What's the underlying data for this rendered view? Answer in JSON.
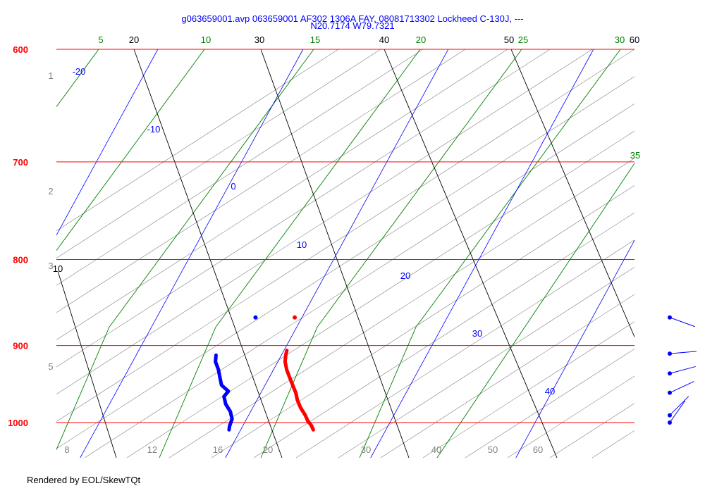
{
  "header": {
    "title_line1": "g063659001.avp 063659001 AF302 1306A FAY, 08081713302 Lockheed C-130J, ---",
    "title_line2": "N20.7174 W79.7321"
  },
  "footer": {
    "text": "Rendered by EOL/SkewTQt"
  },
  "colors": {
    "isobar": "#ff0000",
    "isotherm": "#0000ff",
    "dry_adiabat": "#000000",
    "moist_adiabat": "#008000",
    "mixing_ratio": "#808080",
    "temperature": "#ff0000",
    "dewpoint": "#0000ff",
    "wind": "#0000ff"
  },
  "chart_data": {
    "type": "skew-t",
    "pressure_range_hpa": [
      1000,
      600
    ],
    "isobar_labels": [
      "600",
      "700",
      "800",
      "900",
      "1000"
    ],
    "isotherm_labels": [
      "-20",
      "-10",
      "0",
      "10",
      "20",
      "30",
      "40"
    ],
    "dry_adiabat_labels": [
      "10",
      "20",
      "30",
      "40",
      "50",
      "60"
    ],
    "moist_adiabat_labels": [
      "5",
      "10",
      "15",
      "20",
      "25",
      "30",
      "35"
    ],
    "mixing_ratio_labels": [
      "8",
      "12",
      "16",
      "20",
      "30",
      "40",
      "50",
      "60"
    ],
    "altitude_labels": [
      "1",
      "2",
      "3",
      "5"
    ],
    "temperature_profile": [
      {
        "p": 1010,
        "t": 25.0
      },
      {
        "p": 1004,
        "t": 24.7
      },
      {
        "p": 998,
        "t": 24.3
      },
      {
        "p": 990,
        "t": 23.9
      },
      {
        "p": 980,
        "t": 23.3
      },
      {
        "p": 970,
        "t": 22.8
      },
      {
        "p": 960,
        "t": 22.4
      },
      {
        "p": 950,
        "t": 21.9
      },
      {
        "p": 940,
        "t": 21.4
      },
      {
        "p": 930,
        "t": 20.9
      },
      {
        "p": 920,
        "t": 20.5
      },
      {
        "p": 912,
        "t": 20.3
      },
      {
        "p": 906,
        "t": 20.2
      }
    ],
    "dewpoint_profile": [
      {
        "p": 1010,
        "t": 19.2
      },
      {
        "p": 1005,
        "t": 19.1
      },
      {
        "p": 995,
        "t": 19.0
      },
      {
        "p": 985,
        "t": 18.6
      },
      {
        "p": 975,
        "t": 18.0
      },
      {
        "p": 965,
        "t": 17.6
      },
      {
        "p": 958,
        "t": 17.7
      },
      {
        "p": 950,
        "t": 17.0
      },
      {
        "p": 940,
        "t": 16.6
      },
      {
        "p": 930,
        "t": 16.2
      },
      {
        "p": 920,
        "t": 15.7
      },
      {
        "p": 912,
        "t": 15.5
      }
    ],
    "launch_points": {
      "temperature_c": 19.5,
      "dewpoint_c": 16.8,
      "pressure_hpa": 866
    },
    "winds": [
      {
        "p": 866,
        "speed_kt": 10,
        "dir_deg": 250
      },
      {
        "p": 910,
        "speed_kt": 10,
        "dir_deg": 275
      },
      {
        "p": 935,
        "speed_kt": 9,
        "dir_deg": 285
      },
      {
        "p": 960,
        "speed_kt": 8,
        "dir_deg": 295
      },
      {
        "p": 990,
        "speed_kt": 7,
        "dir_deg": 315
      },
      {
        "p": 1000,
        "speed_kt": 6,
        "dir_deg": 325
      }
    ]
  }
}
